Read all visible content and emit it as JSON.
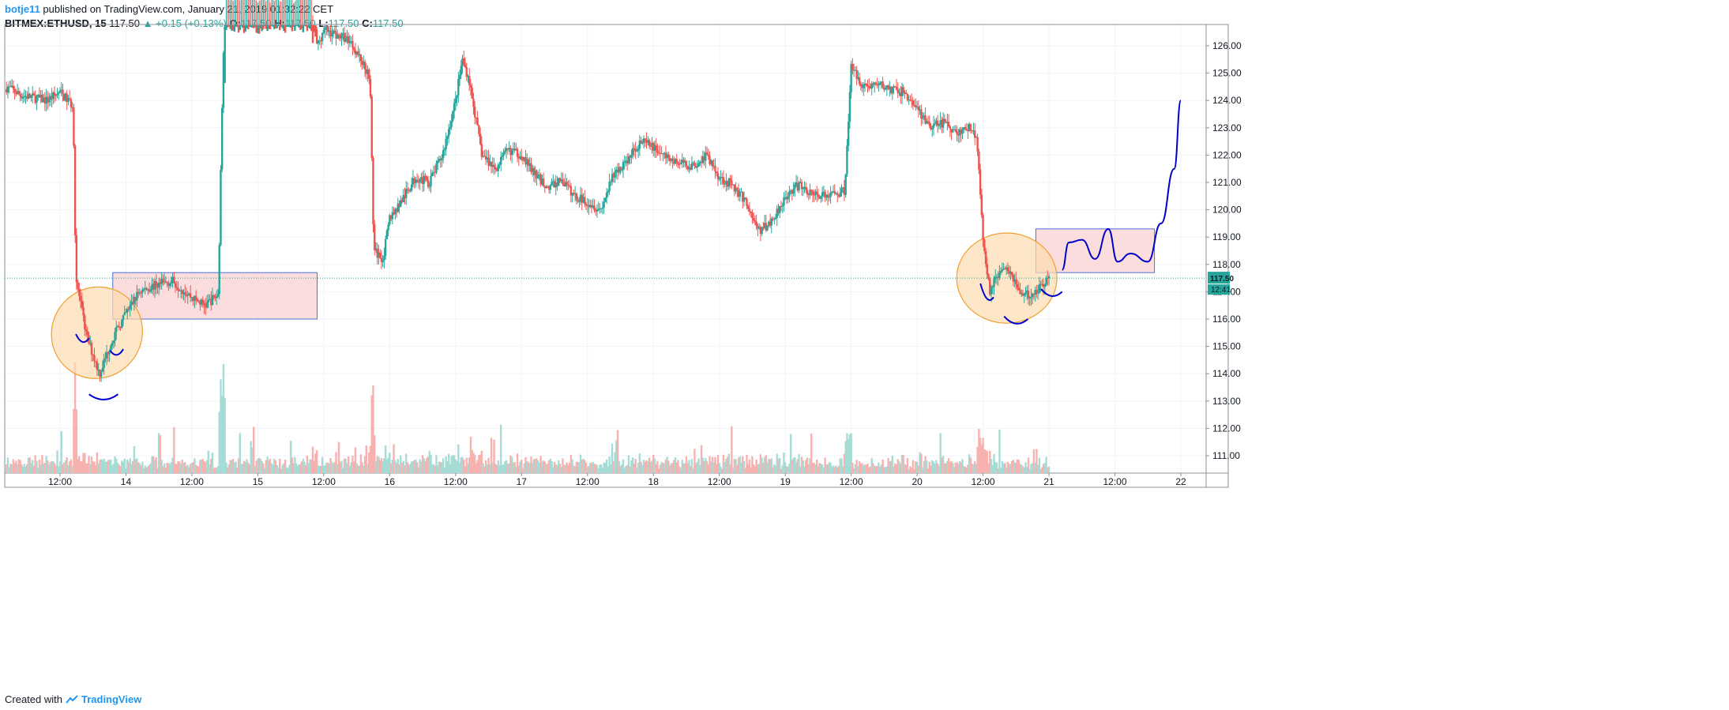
{
  "header": {
    "author": "botje11",
    "published": "published on TradingView.com, January 21, 2019 01:32:22 CET"
  },
  "symbol": {
    "name": "BITMEX:ETHUSD, 15",
    "last": "117.50",
    "change": "+0.15 (+0.13%)",
    "o_label": "O:",
    "o": "117.50",
    "h_label": "H:",
    "h": "117.50",
    "l_label": "L:",
    "l": "117.50",
    "c_label": "C:",
    "c": "117.50"
  },
  "price_tag": {
    "price": "117.50",
    "countdown": "12:41"
  },
  "footer": {
    "created": "Created with",
    "brand": "TradingView"
  },
  "colors": {
    "up": "#26a69a",
    "down": "#ef5350",
    "drawing": "#0000cc",
    "zone": "#fbd5d5",
    "circle": "#fddcb0"
  },
  "chart_data": {
    "type": "candlestick",
    "ylim": [
      110.4,
      126.8
    ],
    "y_ticks": [
      "111.00",
      "112.00",
      "113.00",
      "114.00",
      "115.00",
      "116.00",
      "117.00",
      "118.00",
      "119.00",
      "120.00",
      "121.00",
      "122.00",
      "123.00",
      "124.00",
      "125.00",
      "126.00"
    ],
    "x_ticks": [
      "12:00",
      "14",
      "12:00",
      "15",
      "12:00",
      "16",
      "12:00",
      "17",
      "12:00",
      "18",
      "12:00",
      "19",
      "12:00",
      "20",
      "12:00",
      "21",
      "12:00",
      "22"
    ],
    "x_tick_days": [
      13.5,
      14,
      14.5,
      15,
      15.5,
      16,
      16.5,
      17,
      17.5,
      18,
      18.5,
      19,
      19.5,
      20,
      20.5,
      21,
      21.5,
      22
    ],
    "price_path": [
      [
        13.0,
        124.0
      ],
      [
        13.1,
        124.5
      ],
      [
        13.2,
        124.2
      ],
      [
        13.3,
        124.1
      ],
      [
        13.4,
        124.0
      ],
      [
        13.5,
        124.3
      ],
      [
        13.6,
        123.8
      ],
      [
        13.62,
        117.5
      ],
      [
        13.7,
        115.4
      ],
      [
        13.8,
        114.0
      ],
      [
        13.9,
        115.3
      ],
      [
        14.0,
        116.2
      ],
      [
        14.1,
        117.0
      ],
      [
        14.2,
        117.2
      ],
      [
        14.35,
        117.4
      ],
      [
        14.5,
        116.8
      ],
      [
        14.6,
        116.5
      ],
      [
        14.7,
        116.9
      ],
      [
        14.73,
        124.0
      ],
      [
        14.75,
        128.0
      ],
      [
        15.4,
        128.0
      ],
      [
        15.45,
        126.0
      ],
      [
        15.5,
        126.6
      ],
      [
        15.7,
        126.2
      ],
      [
        15.85,
        124.9
      ],
      [
        15.88,
        118.5
      ],
      [
        15.95,
        118.2
      ],
      [
        16.0,
        119.7
      ],
      [
        16.1,
        120.4
      ],
      [
        16.2,
        121.2
      ],
      [
        16.3,
        121.0
      ],
      [
        16.4,
        122.0
      ],
      [
        16.45,
        123.0
      ],
      [
        16.5,
        124.0
      ],
      [
        16.55,
        125.5
      ],
      [
        16.6,
        124.8
      ],
      [
        16.7,
        122.0
      ],
      [
        16.8,
        121.5
      ],
      [
        16.9,
        122.2
      ],
      [
        17.0,
        122.0
      ],
      [
        17.1,
        121.3
      ],
      [
        17.2,
        120.8
      ],
      [
        17.3,
        121.1
      ],
      [
        17.4,
        120.5
      ],
      [
        17.5,
        120.3
      ],
      [
        17.6,
        120.0
      ],
      [
        17.7,
        121.3
      ],
      [
        17.8,
        121.8
      ],
      [
        17.9,
        122.5
      ],
      [
        18.0,
        122.3
      ],
      [
        18.1,
        121.9
      ],
      [
        18.2,
        121.7
      ],
      [
        18.3,
        121.6
      ],
      [
        18.4,
        122.0
      ],
      [
        18.5,
        121.2
      ],
      [
        18.6,
        120.9
      ],
      [
        18.7,
        120.3
      ],
      [
        18.8,
        119.2
      ],
      [
        18.9,
        119.6
      ],
      [
        19.0,
        120.5
      ],
      [
        19.1,
        120.9
      ],
      [
        19.2,
        120.6
      ],
      [
        19.3,
        120.5
      ],
      [
        19.45,
        120.7
      ],
      [
        19.5,
        125.2
      ],
      [
        19.6,
        124.5
      ],
      [
        19.7,
        124.6
      ],
      [
        19.8,
        124.4
      ],
      [
        19.9,
        124.3
      ],
      [
        20.0,
        123.7
      ],
      [
        20.1,
        123.0
      ],
      [
        20.2,
        123.2
      ],
      [
        20.3,
        122.8
      ],
      [
        20.4,
        123.0
      ],
      [
        20.45,
        122.7
      ],
      [
        20.5,
        119.0
      ],
      [
        20.55,
        117.0
      ],
      [
        20.65,
        118.0
      ],
      [
        20.7,
        117.8
      ],
      [
        20.8,
        116.8
      ],
      [
        20.9,
        117.0
      ],
      [
        21.0,
        117.5
      ]
    ],
    "annotations": {
      "zones": [
        {
          "from_day": 13.9,
          "to_day": 15.45,
          "top": 117.7,
          "bottom": 116.0
        },
        {
          "from_day": 20.9,
          "to_day": 21.8,
          "top": 119.3,
          "bottom": 117.7
        }
      ],
      "ellipses": [
        {
          "center_day": 13.78,
          "center_price": 115.5,
          "rx_days": 0.34,
          "ry_price": 1.7,
          "tilt_deg": 40
        },
        {
          "center_day": 20.68,
          "center_price": 117.5,
          "rx_days": 0.38,
          "ry_price": 1.65,
          "tilt_deg": 0
        }
      ],
      "projection": [
        [
          21.1,
          117.8
        ],
        [
          21.15,
          118.8
        ],
        [
          21.25,
          118.9
        ],
        [
          21.35,
          118.2
        ],
        [
          21.45,
          119.3
        ],
        [
          21.52,
          118.1
        ],
        [
          21.62,
          118.4
        ],
        [
          21.75,
          118.1
        ],
        [
          21.85,
          119.5
        ],
        [
          21.95,
          121.5
        ],
        [
          22.0,
          124.0
        ]
      ]
    },
    "volume_scale_max": 140
  }
}
